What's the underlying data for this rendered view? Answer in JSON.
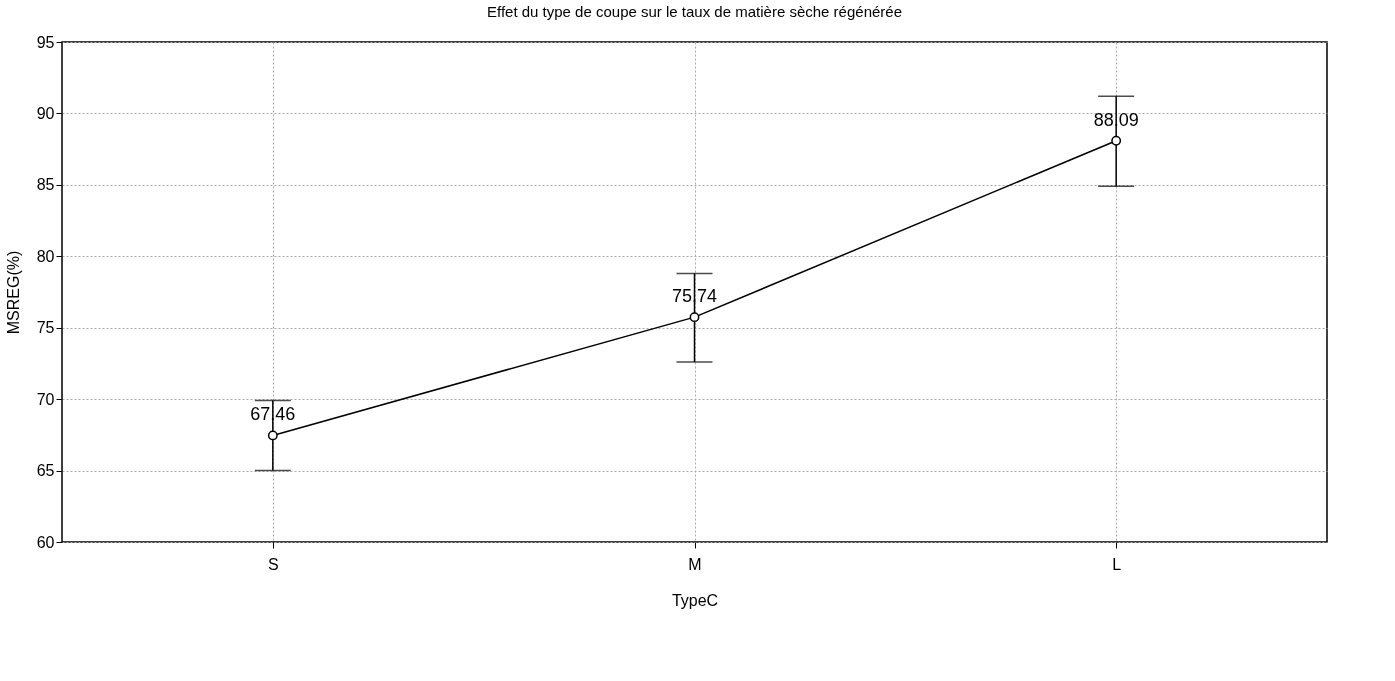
{
  "chart_data": {
    "type": "line",
    "title": "Effet du type de coupe sur le taux de matière sèche régénérée",
    "xlabel": "TypeC",
    "ylabel": "MSREG(%)",
    "categories": [
      "S",
      "M",
      "L"
    ],
    "series": [
      {
        "color": "#000000",
        "values": [
          67.46,
          75.74,
          88.09
        ],
        "errors": [
          [
            65.0,
            69.9
          ],
          [
            72.6,
            78.8
          ],
          [
            84.9,
            91.2
          ]
        ]
      }
    ],
    "ylim": [
      60,
      95
    ],
    "yticks": [
      60,
      65,
      70,
      75,
      80,
      85,
      90,
      95
    ],
    "grid": true,
    "marker": "circle",
    "line_style": "solid",
    "data_labels": true
  }
}
